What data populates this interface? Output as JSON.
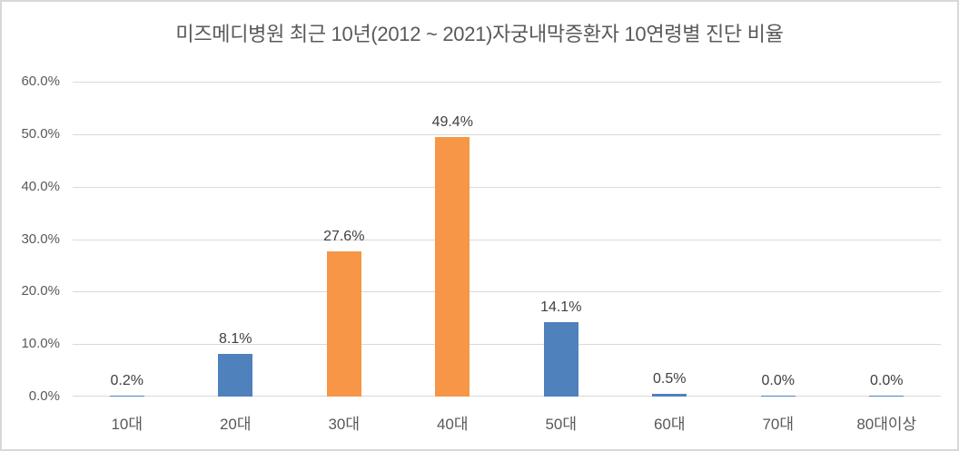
{
  "chart_data": {
    "type": "bar",
    "title": "미즈메디병원 최근 10년(2012 ~ 2021)자궁내막증환자 10연령별 진단 비율",
    "categories": [
      "10대",
      "20대",
      "30대",
      "40대",
      "50대",
      "60대",
      "70대",
      "80대이상"
    ],
    "values": [
      0.2,
      8.1,
      27.6,
      49.4,
      14.1,
      0.5,
      0.0,
      0.0
    ],
    "value_labels": [
      "0.2%",
      "8.1%",
      "27.6%",
      "49.4%",
      "14.1%",
      "0.5%",
      "0.0%",
      "0.0%"
    ],
    "bar_colors": [
      "#4F81BD",
      "#4F81BD",
      "#F79646",
      "#F79646",
      "#4F81BD",
      "#4F81BD",
      "#4F81BD",
      "#4F81BD"
    ],
    "accent_blue": "#4F81BD",
    "accent_orange": "#F79646",
    "gridline_color": "#D9D9D9",
    "axis_text_color": "#595959",
    "value_label_color": "#404040",
    "xlabel": "",
    "ylabel": "",
    "ylim": [
      0,
      60
    ],
    "y_ticks": [
      {
        "value": 0,
        "label": "0.0%"
      },
      {
        "value": 10,
        "label": "10.0%"
      },
      {
        "value": 20,
        "label": "20.0%"
      },
      {
        "value": 30,
        "label": "30.0%"
      },
      {
        "value": 40,
        "label": "40.0%"
      },
      {
        "value": 50,
        "label": "50.0%"
      },
      {
        "value": 60,
        "label": "60.0%"
      }
    ],
    "grid": "horizontal",
    "legend": "none"
  }
}
